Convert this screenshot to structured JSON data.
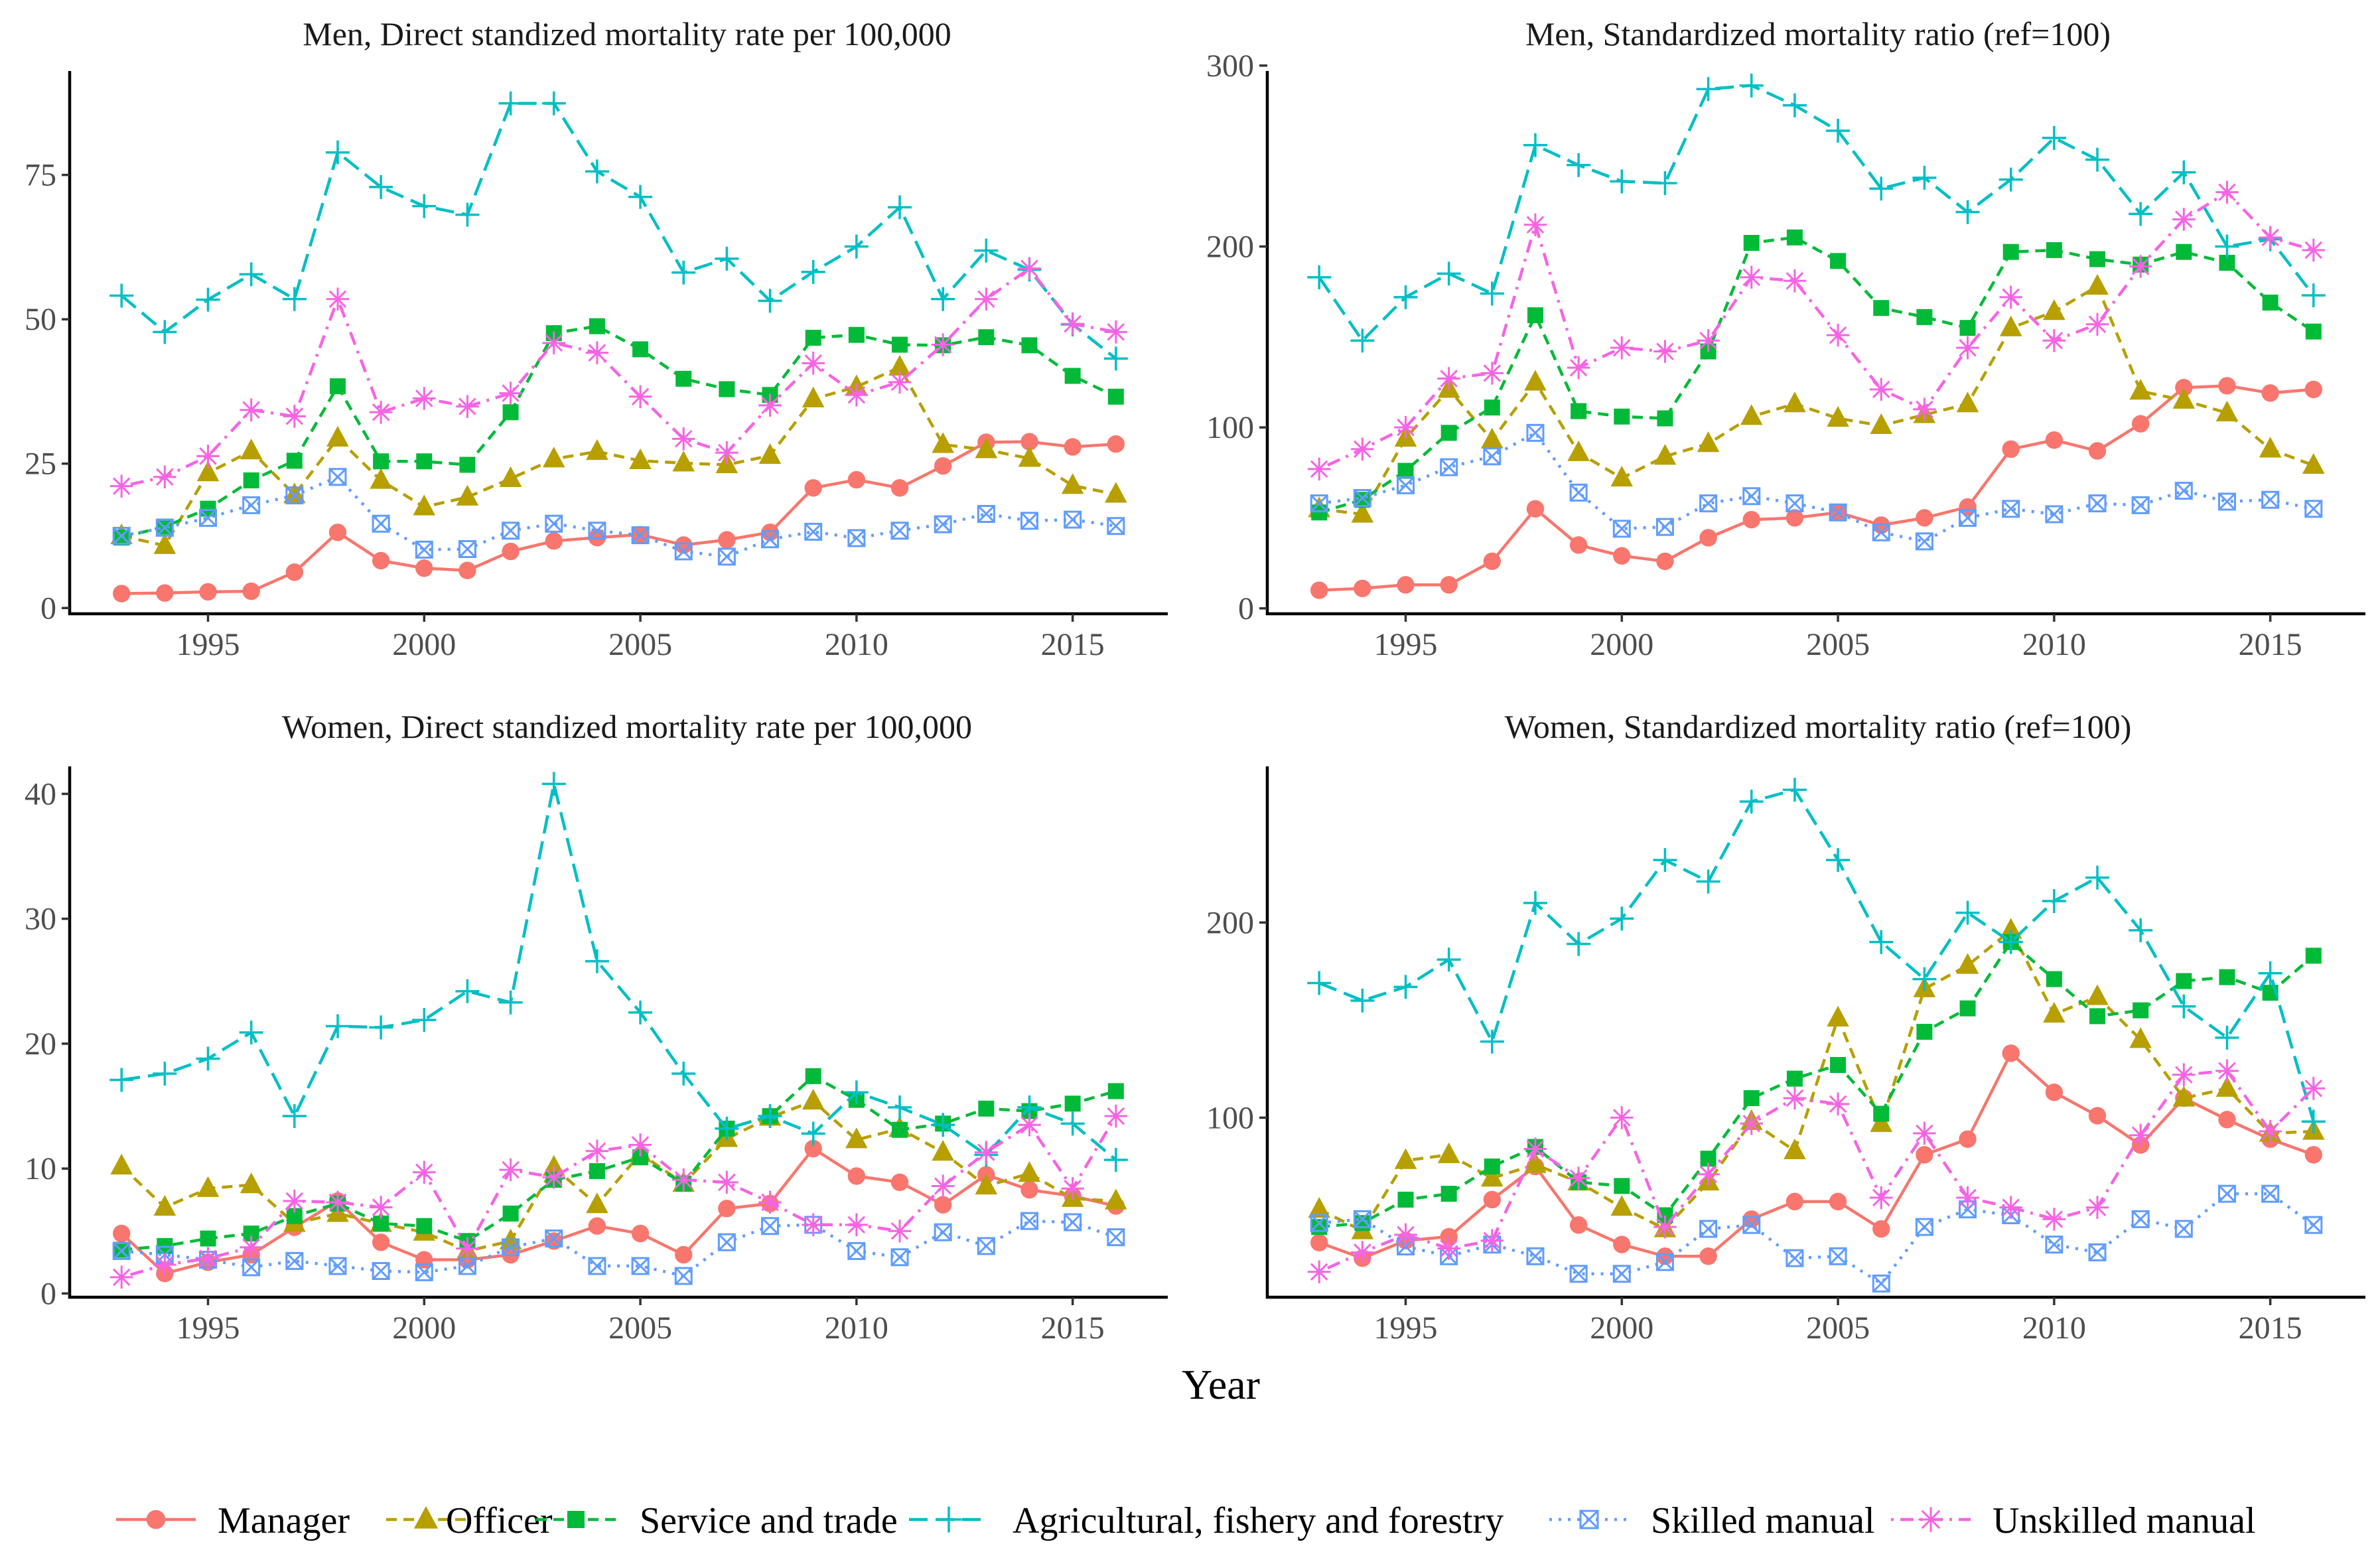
{
  "chart_data": {
    "type": "line",
    "xlabel": "Year",
    "x": [
      1993,
      1994,
      1995,
      1996,
      1997,
      1998,
      1999,
      2000,
      2001,
      2002,
      2003,
      2004,
      2005,
      2006,
      2007,
      2008,
      2009,
      2010,
      2011,
      2012,
      2013,
      2014,
      2015,
      2016
    ],
    "legend": {
      "placement": "bottom",
      "entries": [
        {
          "name": "Manager",
          "color": "#F8766D",
          "linetype": "solid",
          "shape": "circle"
        },
        {
          "name": "Officer",
          "color": "#B79F00",
          "linetype": "dashed",
          "shape": "triangle"
        },
        {
          "name": "Service and trade",
          "color": "#00BA38",
          "linetype": "dashed",
          "shape": "square"
        },
        {
          "name": "Agricultural, fishery and forestry",
          "color": "#00BFC4",
          "linetype": "longdash",
          "shape": "plus"
        },
        {
          "name": "Skilled manual",
          "color": "#619CFF",
          "linetype": "dotted",
          "shape": "boxcross"
        },
        {
          "name": "Unskilled manual",
          "color": "#F564E3",
          "linetype": "dotdash",
          "shape": "asterisk"
        }
      ]
    },
    "panels": [
      {
        "title": "Men, Direct standized mortality rate per 100,000",
        "ylim": [
          -1,
          93
        ],
        "yticks": [
          0,
          25,
          50,
          75
        ],
        "xticks": [
          1995,
          2000,
          2005,
          2010,
          2015
        ],
        "series": [
          {
            "name": "Manager",
            "values": [
              2.5,
              2.6,
              2.8,
              2.9,
              6.2,
              13.1,
              8.2,
              6.9,
              6.5,
              9.8,
              11.6,
              12.2,
              12.7,
              10.9,
              11.8,
              13.1,
              20.8,
              22.2,
              20.8,
              24.6,
              28.7,
              28.8,
              27.9,
              28.4
            ]
          },
          {
            "name": "Officer",
            "values": [
              12.5,
              10.8,
              23.4,
              27.2,
              19.6,
              29.4,
              22.1,
              17.5,
              19.2,
              22.4,
              25.8,
              27.1,
              25.5,
              25.1,
              24.8,
              26.4,
              36.2,
              38.3,
              41.7,
              28.3,
              27.4,
              25.9,
              21.2,
              19.7
            ]
          },
          {
            "name": "Service and trade",
            "values": [
              12.2,
              14.1,
              17.2,
              22.1,
              25.5,
              38.4,
              25.4,
              25.4,
              24.8,
              33.9,
              47.6,
              48.8,
              44.8,
              39.7,
              37.9,
              36.9,
              46.8,
              47.3,
              45.6,
              45.5,
              46.9,
              45.5,
              40.2,
              36.6
            ]
          },
          {
            "name": "Agricultural, fishery and forestry",
            "values": [
              54.1,
              47.8,
              53.4,
              57.8,
              53.5,
              78.9,
              72.9,
              69.6,
              68.1,
              87.4,
              87.4,
              75.6,
              71.2,
              58.1,
              60.5,
              53.2,
              58.2,
              62.6,
              69.4,
              53.5,
              61.9,
              58.6,
              49.1,
              43.2
            ]
          },
          {
            "name": "Skilled manual",
            "values": [
              12.5,
              13.9,
              15.6,
              17.8,
              19.5,
              22.7,
              14.6,
              10.1,
              10.2,
              13.4,
              14.6,
              13.4,
              12.6,
              9.8,
              8.9,
              11.9,
              13.2,
              12.1,
              13.4,
              14.5,
              16.3,
              15.1,
              15.3,
              14.2
            ]
          },
          {
            "name": "Unskilled manual",
            "values": [
              21.1,
              22.7,
              26.3,
              34.3,
              33.2,
              53.5,
              33.9,
              36.3,
              34.9,
              37.2,
              45.9,
              44.2,
              36.6,
              29.3,
              26.9,
              35.1,
              42.4,
              36.9,
              39.1,
              45.6,
              53.5,
              58.8,
              49.2,
              47.8
            ]
          }
        ]
      },
      {
        "title": "Men, Standardized mortality ratio (ref=100)",
        "ylim": [
          -3,
          297
        ],
        "yticks": [
          0,
          100,
          200,
          300
        ],
        "xticks": [
          1995,
          2000,
          2005,
          2010,
          2015
        ],
        "series": [
          {
            "name": "Manager",
            "values": [
              10,
              11,
              13,
              13,
              26,
              55,
              35,
              29,
              26,
              39,
              49,
              50,
              53,
              46,
              50,
              56,
              88,
              93,
              87,
              102,
              122,
              123,
              119,
              121
            ]
          },
          {
            "name": "Officer",
            "values": [
              55,
              52,
              94,
              121,
              93,
              125,
              86,
              72,
              84,
              91,
              106,
              113,
              105,
              101,
              107,
              113,
              155,
              164,
              178,
              120,
              115,
              108,
              88,
              79
            ]
          },
          {
            "name": "Service and trade",
            "values": [
              53,
              60,
              76,
              97,
              111,
              162,
              109,
              106,
              105,
              142,
              202,
              205,
              192,
              166,
              161,
              155,
              197,
              198,
              193,
              190,
              197,
              191,
              169,
              153
            ]
          },
          {
            "name": "Agricultural, fishery and forestry",
            "values": [
              183,
              148,
              172,
              185,
              174,
              256,
              245,
              236,
              235,
              287,
              289,
              278,
              264,
              232,
              238,
              219,
              237,
              260,
              248,
              218,
              241,
              200,
              204,
              173
            ]
          },
          {
            "name": "Skilled manual",
            "values": [
              58,
              61,
              68,
              78,
              84,
              97,
              64,
              44,
              45,
              58,
              62,
              58,
              53,
              42,
              37,
              50,
              55,
              52,
              58,
              57,
              65,
              59,
              60,
              55
            ]
          },
          {
            "name": "Unskilled manual",
            "values": [
              77,
              88,
              100,
              127,
              130,
              212,
              133,
              144,
              142,
              148,
              183,
              181,
              151,
              121,
              110,
              144,
              172,
              148,
              157,
              189,
              215,
              230,
              205,
              198
            ]
          }
        ]
      },
      {
        "title": "Women, Direct standized mortality rate per 100,000",
        "ylim": [
          -0.3,
          42.2
        ],
        "yticks": [
          0,
          10,
          20,
          30,
          40
        ],
        "xticks": [
          1995,
          2000,
          2005,
          2010,
          2015
        ],
        "series": [
          {
            "name": "Manager",
            "values": [
              4.8,
              1.6,
              2.5,
              3.1,
              5.3,
              7.4,
              4.1,
              2.7,
              2.7,
              3.1,
              4.2,
              5.4,
              4.8,
              3.1,
              6.8,
              7.2,
              11.6,
              9.4,
              8.9,
              7.1,
              9.5,
              8.3,
              7.8,
              7.0
            ]
          },
          {
            "name": "Officer",
            "values": [
              10.2,
              6.9,
              8.4,
              8.7,
              5.6,
              6.4,
              5.6,
              4.9,
              3.4,
              4.2,
              10.1,
              7.1,
              11.2,
              8.8,
              12.4,
              14.1,
              15.4,
              12.3,
              13.2,
              11.3,
              8.6,
              9.6,
              7.6,
              7.4
            ]
          },
          {
            "name": "Service and trade",
            "values": [
              3.5,
              3.8,
              4.4,
              4.8,
              6.2,
              7.2,
              5.6,
              5.4,
              4.2,
              6.4,
              9.1,
              9.8,
              10.9,
              8.8,
              13.2,
              14.2,
              17.4,
              15.5,
              13.1,
              13.6,
              14.8,
              14.6,
              15.2,
              16.2
            ]
          },
          {
            "name": "Agricultural, fishery and forestry",
            "values": [
              17.1,
              17.6,
              18.8,
              20.9,
              14.2,
              21.4,
              21.3,
              21.9,
              24.2,
              23.3,
              40.8,
              26.6,
              22.5,
              17.6,
              13.2,
              14.2,
              12.8,
              16.1,
              14.9,
              13.5,
              11.1,
              14.9,
              13.6,
              10.7
            ]
          },
          {
            "name": "Skilled manual",
            "values": [
              3.4,
              3.1,
              2.7,
              2.1,
              2.6,
              2.2,
              1.8,
              1.7,
              2.2,
              3.7,
              4.4,
              2.2,
              2.2,
              1.4,
              4.1,
              5.4,
              5.5,
              3.4,
              2.9,
              4.9,
              3.8,
              5.8,
              5.7,
              4.5
            ]
          },
          {
            "name": "Unskilled manual",
            "values": [
              1.3,
              2.3,
              2.8,
              3.7,
              7.4,
              7.3,
              6.9,
              9.7,
              3.6,
              9.9,
              9.3,
              11.4,
              11.9,
              9.1,
              8.9,
              7.3,
              5.5,
              5.5,
              5.0,
              8.6,
              11.3,
              13.5,
              8.4,
              14.2
            ]
          }
        ]
      },
      {
        "title": "Women, Standardized mortality ratio (ref=100)",
        "ylim": [
          8,
          280
        ],
        "yticks": [
          100,
          200
        ],
        "xticks": [
          1995,
          2000,
          2005,
          2010,
          2015
        ],
        "series": [
          {
            "name": "Manager",
            "values": [
              36,
              28,
              37,
              39,
              58,
              75,
              45,
              35,
              29,
              29,
              48,
              57,
              57,
              43,
              81,
              89,
              133,
              113,
              101,
              86,
              110,
              99,
              89,
              81
            ]
          },
          {
            "name": "Officer",
            "values": [
              53,
              42,
              78,
              81,
              69,
              76,
              67,
              54,
              43,
              67,
              98,
              83,
              151,
              97,
              166,
              178,
              196,
              153,
              162,
              140,
              110,
              115,
              92,
              93
            ]
          },
          {
            "name": "Service and trade",
            "values": [
              44,
              46,
              58,
              61,
              75,
              85,
              67,
              65,
              50,
              79,
              110,
              120,
              127,
              102,
              144,
              156,
              190,
              171,
              152,
              155,
              170,
              172,
              164,
              183
            ]
          },
          {
            "name": "Agricultural, fishery and forestry",
            "values": [
              169,
              160,
              167,
              181,
              139,
              210,
              189,
              202,
              232,
              221,
              262,
              268,
              232,
              190,
              171,
              205,
              190,
              211,
              223,
              196,
              157,
              141,
              174,
              98
            ]
          },
          {
            "name": "Skilled manual",
            "values": [
              46,
              48,
              34,
              29,
              35,
              29,
              20,
              20,
              26,
              43,
              45,
              28,
              29,
              15,
              44,
              53,
              50,
              35,
              31,
              48,
              43,
              61,
              61,
              45
            ]
          },
          {
            "name": "Unskilled manual",
            "values": [
              21,
              31,
              40,
              33,
              37,
              84,
              69,
              100,
              44,
              71,
              97,
              110,
              107,
              59,
              92,
              59,
              54,
              48,
              54,
              91,
              122,
              124,
              93,
              115
            ]
          }
        ]
      }
    ]
  }
}
